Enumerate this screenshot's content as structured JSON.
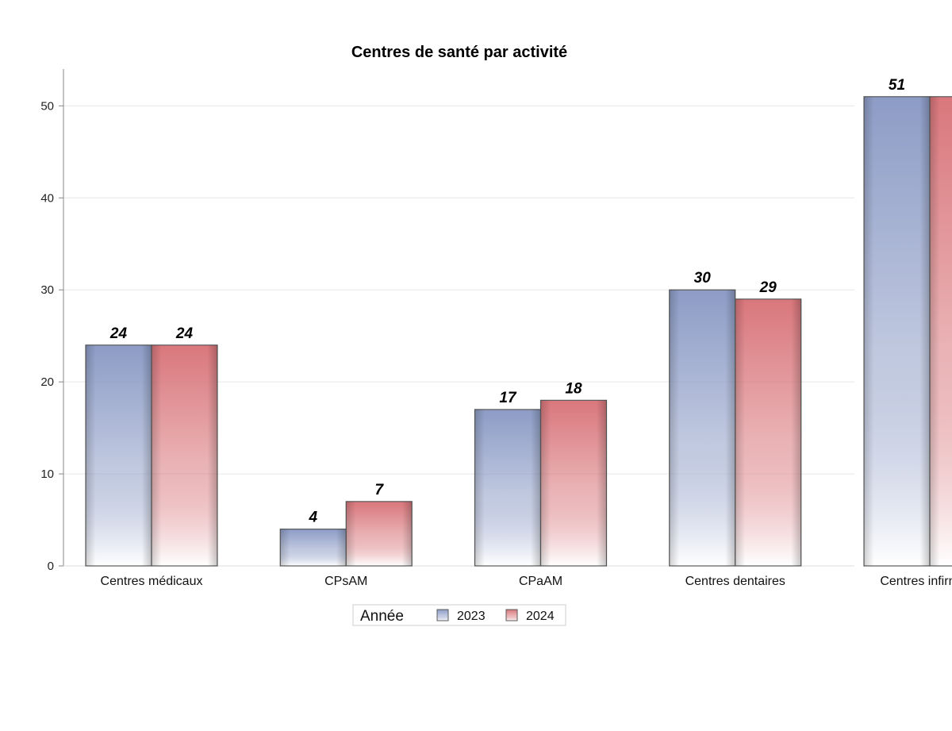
{
  "chart_data": {
    "type": "bar",
    "title": "Centres de santé par activité",
    "xlabel": "",
    "ylabel": "",
    "categories": [
      "Centres médicaux",
      "CPsAM",
      "CPaAM",
      "Centres dentaires",
      "Centres infirmiers"
    ],
    "series": [
      {
        "name": "2023",
        "values": [
          24,
          4,
          17,
          30,
          51
        ],
        "color": "#8d9cc6"
      },
      {
        "name": "2024",
        "values": [
          24,
          7,
          18,
          29,
          51
        ],
        "color": "#d9777c"
      }
    ],
    "ylim": [
      0,
      54
    ],
    "yticks": [
      0,
      10,
      20,
      30,
      40,
      50
    ],
    "grid": true,
    "legend": {
      "title": "Année",
      "placement": "bottom-center"
    },
    "data_labels": true
  }
}
